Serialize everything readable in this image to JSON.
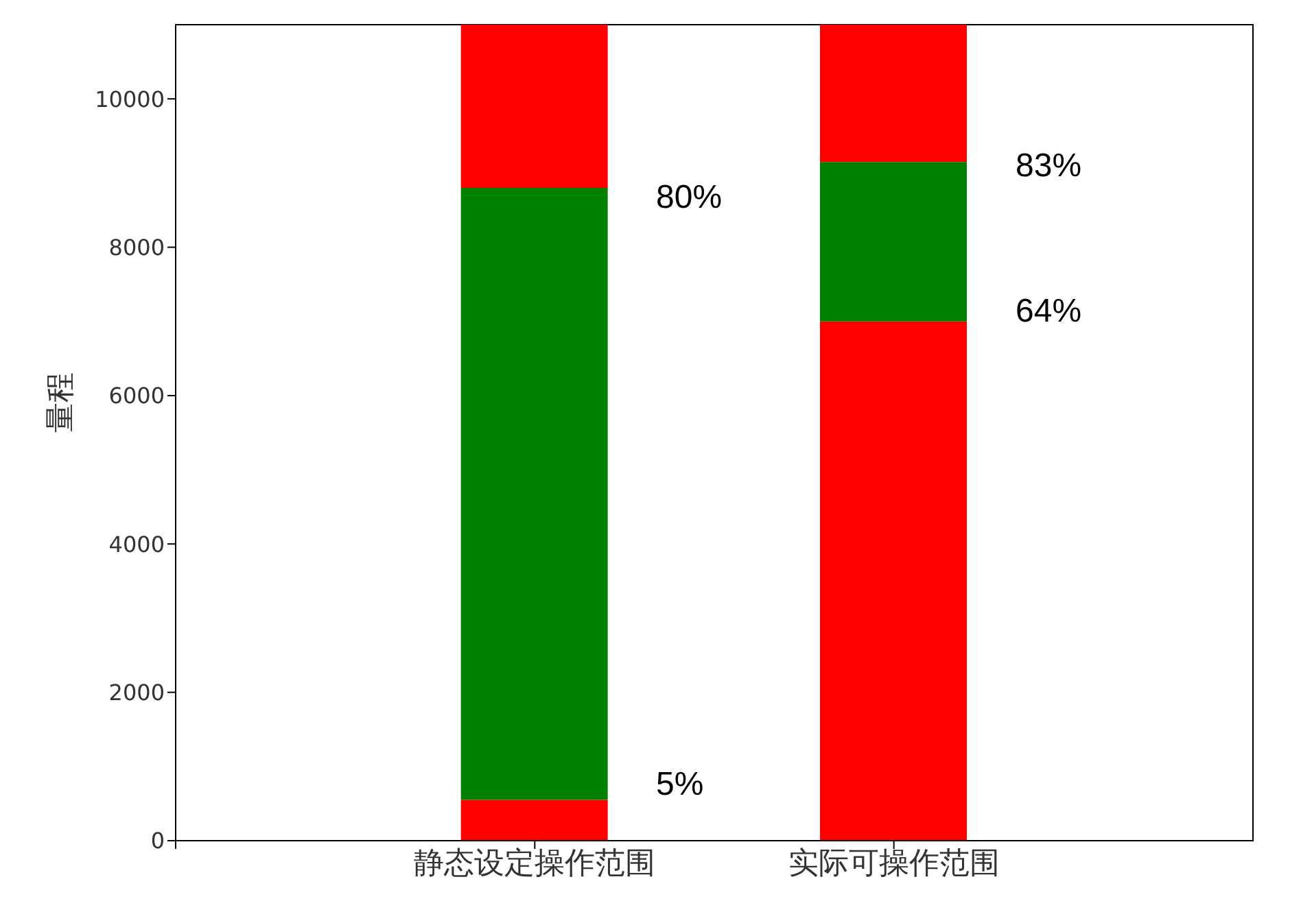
{
  "chart_data": {
    "type": "bar",
    "stacked": true,
    "ylabel": "量程",
    "categories": [
      null,
      "静态设定操作范围",
      "实际可操作范围"
    ],
    "series": [
      {
        "color": "#ff0000",
        "values": [
          null,
          550,
          7000
        ]
      },
      {
        "color": "#008000",
        "values": [
          null,
          8250,
          2150
        ]
      },
      {
        "color": "#ff0000",
        "values": [
          null,
          2200,
          1850
        ]
      }
    ],
    "ylim": [
      0,
      11000
    ],
    "yticks": [
      0,
      2000,
      4000,
      6000,
      8000,
      10000
    ],
    "grid": false,
    "annotations": [
      "80%",
      "5%",
      "83%",
      "64%"
    ]
  }
}
